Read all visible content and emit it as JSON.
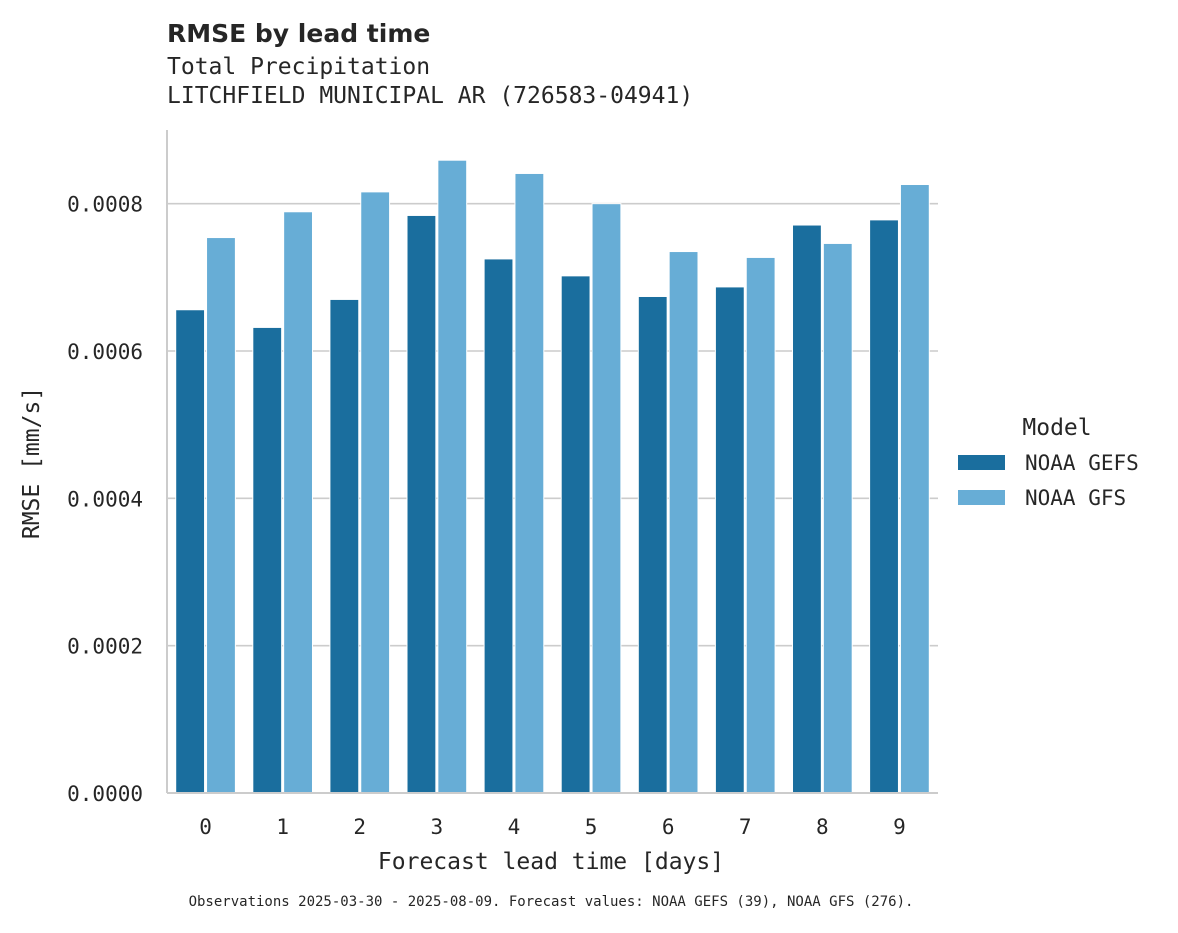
{
  "colors": {
    "NOAA GEFS": "#1a6e9e",
    "NOAA GFS": "#67add6",
    "grid": "#cccccc",
    "axis": "#cccccc",
    "text": "#262626"
  },
  "chart_data": {
    "type": "bar",
    "title": "RMSE by lead time",
    "subtitle_lines": [
      "Total Precipitation",
      "LITCHFIELD MUNICIPAL AR (726583-04941)"
    ],
    "xlabel": "Forecast lead time [days]",
    "ylabel": "RMSE [mm/s]",
    "categories": [
      "0",
      "1",
      "2",
      "3",
      "4",
      "5",
      "6",
      "7",
      "8",
      "9"
    ],
    "series": [
      {
        "name": "NOAA GEFS",
        "values": [
          0.000656,
          0.000632,
          0.00067,
          0.000784,
          0.000725,
          0.000702,
          0.000674,
          0.000687,
          0.000771,
          0.000778
        ]
      },
      {
        "name": "NOAA GFS",
        "values": [
          0.000754,
          0.000789,
          0.000816,
          0.000859,
          0.000841,
          0.0008,
          0.000735,
          0.000727,
          0.000746,
          0.000826
        ]
      }
    ],
    "ylim": [
      0,
      0.0009
    ],
    "yticks": [
      0,
      0.0002,
      0.0004,
      0.0006,
      0.0008
    ],
    "ytick_labels": [
      "0.0000",
      "0.0002",
      "0.0004",
      "0.0006",
      "0.0008"
    ],
    "grid": "y",
    "legend": {
      "title": "Model",
      "placement": "right"
    },
    "footnote": "Observations 2025-03-30 - 2025-08-09. Forecast values: NOAA GEFS (39), NOAA GFS (276)."
  }
}
